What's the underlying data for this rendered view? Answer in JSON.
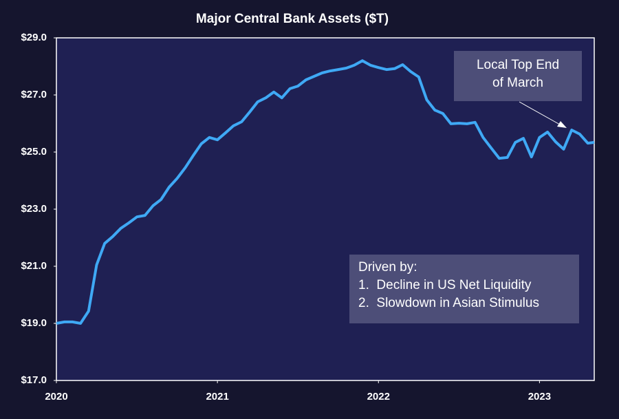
{
  "chart_data": {
    "type": "line",
    "title": "Major Central Bank Assets ($T)",
    "x": [
      2020,
      2020.05,
      2020.1,
      2020.15,
      2020.2,
      2020.25,
      2020.3,
      2020.35,
      2020.4,
      2020.45,
      2020.5,
      2020.55,
      2020.6,
      2020.65,
      2020.7,
      2020.75,
      2020.8,
      2020.85,
      2020.9,
      2020.95,
      2021,
      2021.05,
      2021.1,
      2021.15,
      2021.2,
      2021.25,
      2021.3,
      2021.35,
      2021.4,
      2021.45,
      2021.5,
      2021.55,
      2021.6,
      2021.65,
      2021.7,
      2021.75,
      2021.8,
      2021.85,
      2021.9,
      2021.95,
      2022,
      2022.05,
      2022.1,
      2022.15,
      2022.2,
      2022.25,
      2022.3,
      2022.35,
      2022.4,
      2022.45,
      2022.5,
      2022.55,
      2022.6,
      2022.65,
      2022.7,
      2022.75,
      2022.8,
      2022.85,
      2022.9,
      2022.95,
      2023,
      2023.05,
      2023.1,
      2023.15,
      2023.2,
      2023.25,
      2023.3,
      2023.34
    ],
    "values": [
      19.0,
      19.05,
      19.05,
      19.0,
      19.43,
      21.05,
      21.8,
      22.04,
      22.33,
      22.52,
      22.73,
      22.78,
      23.12,
      23.34,
      23.77,
      24.08,
      24.45,
      24.88,
      25.29,
      25.51,
      25.43,
      25.67,
      25.92,
      26.06,
      26.4,
      26.76,
      26.9,
      27.1,
      26.9,
      27.22,
      27.31,
      27.53,
      27.65,
      27.77,
      27.84,
      27.89,
      27.94,
      28.04,
      28.2,
      28.04,
      27.96,
      27.89,
      27.92,
      28.06,
      27.82,
      27.63,
      26.83,
      26.47,
      26.35,
      25.99,
      26.01,
      25.99,
      26.04,
      25.51,
      25.14,
      24.78,
      24.81,
      25.34,
      25.48,
      24.83,
      25.51,
      25.7,
      25.36,
      25.1,
      25.77,
      25.63,
      25.31,
      25.34
    ],
    "color": "#3fa9f5",
    "xlim": [
      2020,
      2023.34
    ],
    "xticks": [
      2020,
      2021,
      2022,
      2023
    ],
    "ylim": [
      17,
      29
    ],
    "yticks": [
      {
        "value": 17,
        "label": "$17.0"
      },
      {
        "value": 19,
        "label": "$19.0"
      },
      {
        "value": 21,
        "label": "$21.0"
      },
      {
        "value": 23,
        "label": "$23.0"
      },
      {
        "value": 25,
        "label": "$25.0"
      },
      {
        "value": 27,
        "label": "$27.0"
      },
      {
        "value": 29,
        "label": "$29.0"
      }
    ],
    "annotations": [
      {
        "lines": [
          "Local Top End",
          "of March"
        ]
      },
      {
        "lines": [
          "Driven by:",
          "1.  Decline in US Net Liquidity",
          "2.  Slowdown in Asian Stimulus"
        ]
      }
    ]
  }
}
